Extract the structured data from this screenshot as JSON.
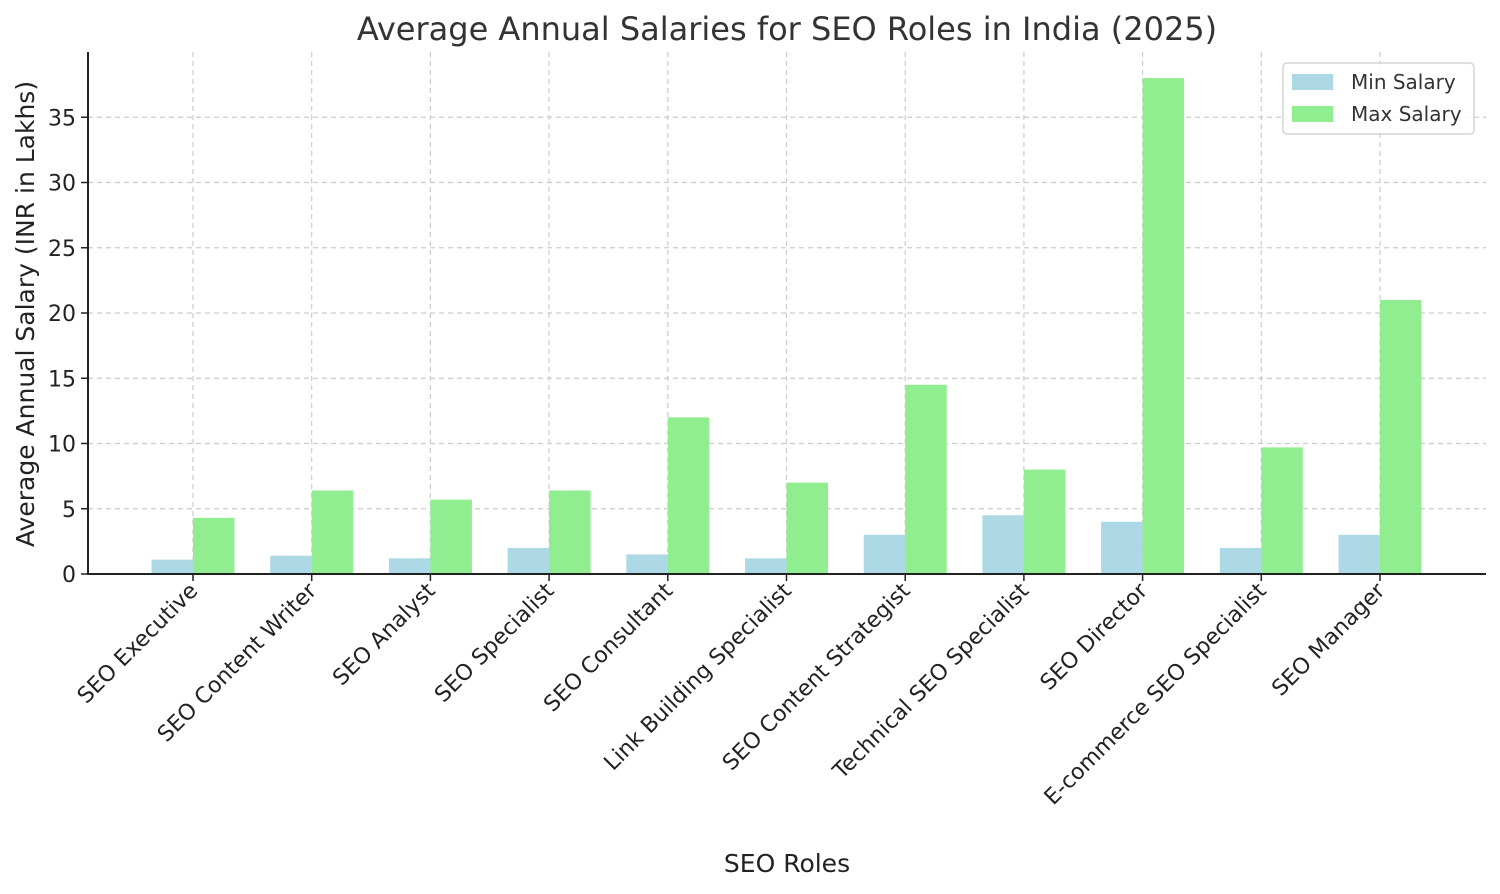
{
  "chart_data": {
    "type": "bar",
    "title": "Average Annual Salaries for SEO Roles in India (2025)",
    "xlabel": "SEO Roles",
    "ylabel": "Average Annual Salary (INR in Lakhs)",
    "categories": [
      "SEO Executive",
      "SEO Content Writer",
      "SEO Analyst",
      "SEO Specialist",
      "SEO Consultant",
      "Link Building Specialist",
      "SEO Content Strategist",
      "Technical SEO Specialist",
      "SEO Director",
      "E-commerce SEO Specialist",
      "SEO Manager"
    ],
    "series": [
      {
        "name": "Min Salary",
        "color": "#add8e6",
        "values": [
          1.1,
          1.4,
          1.2,
          2.0,
          1.5,
          1.2,
          3.0,
          4.5,
          4.0,
          2.0,
          3.0
        ]
      },
      {
        "name": "Max Salary",
        "color": "#90ee90",
        "values": [
          4.3,
          6.4,
          5.7,
          6.4,
          12.0,
          7.0,
          14.5,
          8.0,
          38.0,
          9.7,
          21.0
        ]
      }
    ],
    "ylim": [
      0,
      40
    ],
    "yticks": [
      0,
      5,
      10,
      15,
      20,
      25,
      30,
      35
    ],
    "grid": true,
    "legend_position": "top-right"
  }
}
